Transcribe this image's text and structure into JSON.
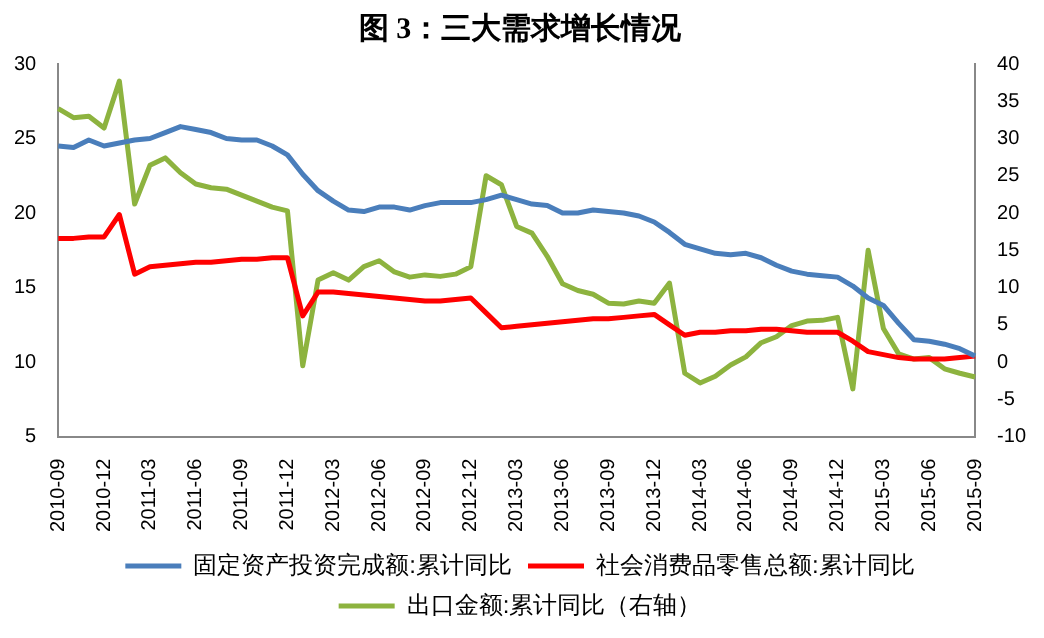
{
  "chart_data": {
    "type": "line",
    "title": "图 3：三大需求增长情况",
    "categories": [
      "2010-09",
      null,
      null,
      "2010-12",
      null,
      null,
      "2011-03",
      null,
      null,
      "2011-06",
      null,
      null,
      "2011-09",
      null,
      null,
      "2011-12",
      null,
      null,
      "2012-03",
      null,
      null,
      "2012-06",
      null,
      null,
      "2012-09",
      null,
      null,
      "2012-12",
      null,
      null,
      "2013-03",
      null,
      null,
      "2013-06",
      null,
      null,
      "2013-09",
      null,
      null,
      "2013-12",
      null,
      null,
      "2014-03",
      null,
      null,
      "2014-06",
      null,
      null,
      "2014-09",
      null,
      null,
      "2014-12",
      null,
      null,
      "2015-03",
      null,
      null,
      "2015-06",
      null,
      null,
      "2015-09"
    ],
    "series": [
      {
        "name": "固定资产投资完成额:累计同比",
        "color": "#4a7ebb",
        "values": [
          24.5,
          24.4,
          24.9,
          24.5,
          24.7,
          24.9,
          25.0,
          25.4,
          25.8,
          25.6,
          25.4,
          25.0,
          24.9,
          24.9,
          24.5,
          23.9,
          22.6,
          21.5,
          20.8,
          20.2,
          20.1,
          20.4,
          20.4,
          20.2,
          20.5,
          20.7,
          20.7,
          20.7,
          20.9,
          21.2,
          20.9,
          20.6,
          20.5,
          20.0,
          20.0,
          20.2,
          20.1,
          20.0,
          19.8,
          19.4,
          18.7,
          17.9,
          17.6,
          17.3,
          17.2,
          17.3,
          17.0,
          16.5,
          16.1,
          15.9,
          15.8,
          15.7,
          15.1,
          14.3,
          13.8,
          12.6,
          11.5,
          11.4,
          11.2,
          10.9,
          10.4
        ]
      },
      {
        "name": "社会消费品零售总额:累计同比",
        "color": "#ff0000",
        "values": [
          18.3,
          18.3,
          18.4,
          18.4,
          19.9,
          15.9,
          16.4,
          16.5,
          16.6,
          16.7,
          16.7,
          16.8,
          16.9,
          16.9,
          17.0,
          17.0,
          13.1,
          14.7,
          14.7,
          14.6,
          14.5,
          14.4,
          14.3,
          14.2,
          14.1,
          14.1,
          14.2,
          14.3,
          13.3,
          12.3,
          12.4,
          12.5,
          12.6,
          12.7,
          12.8,
          12.9,
          12.9,
          13.0,
          13.1,
          13.2,
          12.5,
          11.8,
          12.0,
          12.0,
          12.1,
          12.1,
          12.2,
          12.2,
          12.1,
          12.0,
          12.0,
          12.0,
          11.4,
          10.7,
          10.5,
          10.3,
          10.2,
          10.2,
          10.2,
          10.3,
          10.4
        ]
      },
      {
        "name": "出口金额:累计同比（右轴）",
        "color": "#8db33f",
        "axis": "y2",
        "values": [
          34.0,
          32.8,
          33.0,
          31.4,
          37.7,
          21.2,
          26.4,
          27.4,
          25.4,
          23.9,
          23.4,
          23.2,
          22.4,
          21.6,
          20.8,
          20.3,
          -0.5,
          11.0,
          12.0,
          11.0,
          12.8,
          13.6,
          12.1,
          11.4,
          11.7,
          11.5,
          11.8,
          12.8,
          25.0,
          23.8,
          18.2,
          17.3,
          14.2,
          10.5,
          9.6,
          9.1,
          7.9,
          7.8,
          8.2,
          7.9,
          10.6,
          -1.5,
          -2.8,
          -1.9,
          -0.4,
          0.7,
          2.6,
          3.4,
          4.9,
          5.5,
          5.6,
          6.0,
          -3.6,
          15.0,
          4.5,
          1.1,
          0.4,
          0.6,
          -0.9,
          -1.5,
          -2.0
        ]
      }
    ],
    "ylim": [
      5,
      30
    ],
    "yticks": [
      5,
      10,
      15,
      20,
      25,
      30
    ],
    "y2lim": [
      -10,
      40
    ],
    "y2ticks": [
      -10,
      -5,
      0,
      5,
      10,
      15,
      20,
      25,
      30,
      35,
      40
    ],
    "grid": false,
    "legend": "bottom",
    "marker": "none",
    "line_style": "solid"
  }
}
